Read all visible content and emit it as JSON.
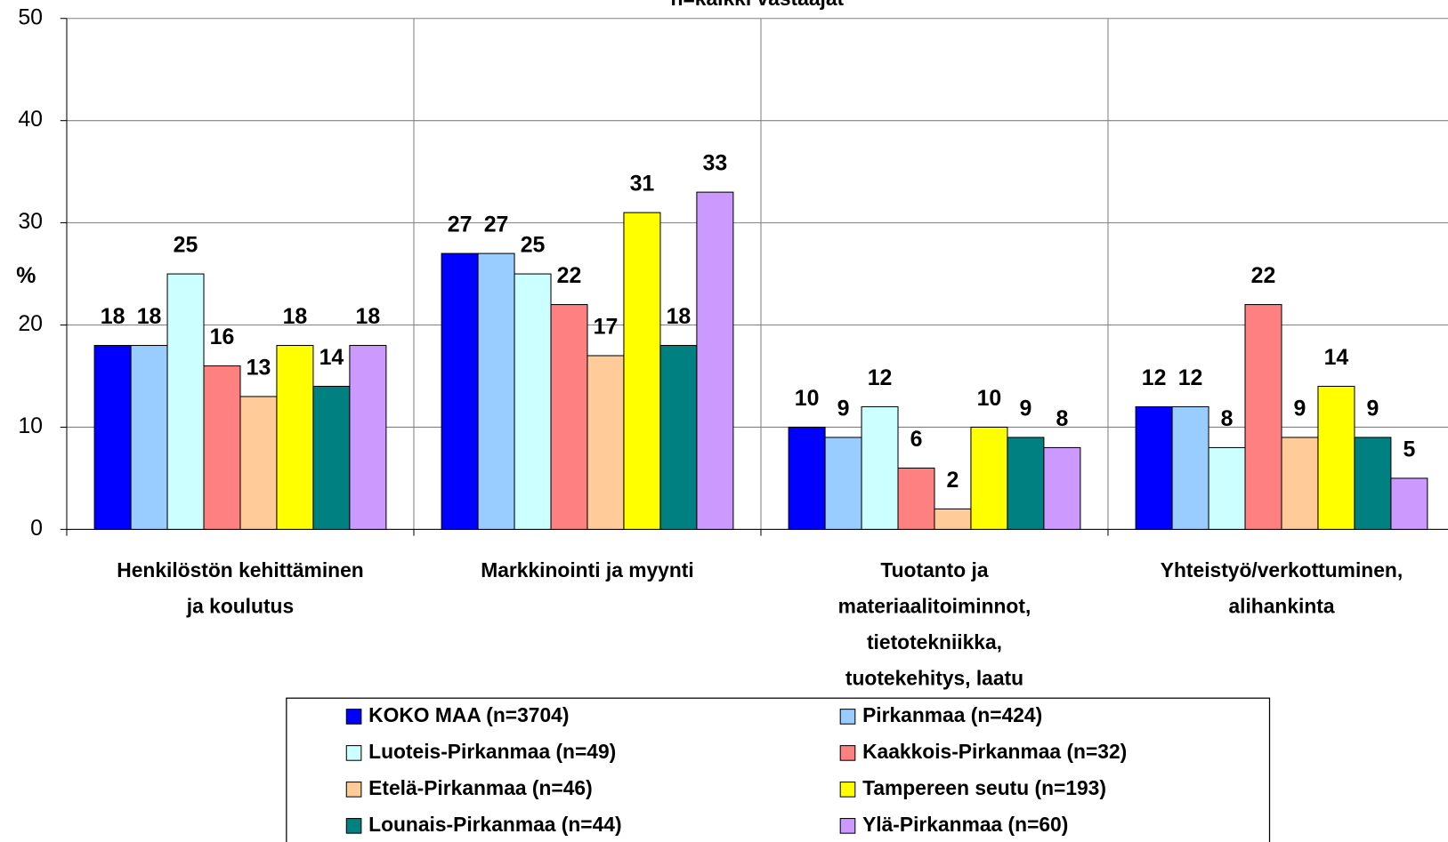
{
  "chart_data": {
    "type": "bar",
    "subtitle": "n=kaikki vastaajat",
    "ylabel": "%",
    "categories": [
      "Henkilöstön kehittäminen\nja koulutus",
      "Markkinointi ja myynti",
      "Tuotanto ja\nmateriaalitoiminnot,\ntietotekniikka,\ntuotekehitys, laatu",
      "Yhteistyö/verkottuminen,\nalihankinta"
    ],
    "series": [
      {
        "name": "KOKO MAA (n=3704)",
        "color": "#0000ff",
        "values": [
          18,
          27,
          10,
          12
        ]
      },
      {
        "name": "Pirkanmaa (n=424)",
        "color": "#99ccff",
        "values": [
          18,
          27,
          9,
          12
        ]
      },
      {
        "name": "Luoteis-Pirkanmaa (n=49)",
        "color": "#ccffff",
        "values": [
          25,
          25,
          12,
          8
        ]
      },
      {
        "name": "Kaakkois-Pirkanmaa (n=32)",
        "color": "#ff8080",
        "values": [
          16,
          22,
          6,
          22
        ]
      },
      {
        "name": "Etelä-Pirkanmaa (n=46)",
        "color": "#ffcc99",
        "values": [
          13,
          17,
          2,
          9
        ]
      },
      {
        "name": "Tampereen seutu (n=193)",
        "color": "#ffff00",
        "values": [
          18,
          31,
          10,
          14
        ]
      },
      {
        "name": "Lounais-Pirkanmaa (n=44)",
        "color": "#008080",
        "values": [
          14,
          18,
          9,
          9
        ]
      },
      {
        "name": "Ylä-Pirkanmaa (n=60)",
        "color": "#cc99ff",
        "values": [
          18,
          33,
          8,
          5
        ]
      }
    ],
    "ylim": [
      0,
      50
    ],
    "yticks": [
      0,
      10,
      20,
      30,
      40,
      50
    ],
    "grid": true,
    "legend": "bottom"
  }
}
